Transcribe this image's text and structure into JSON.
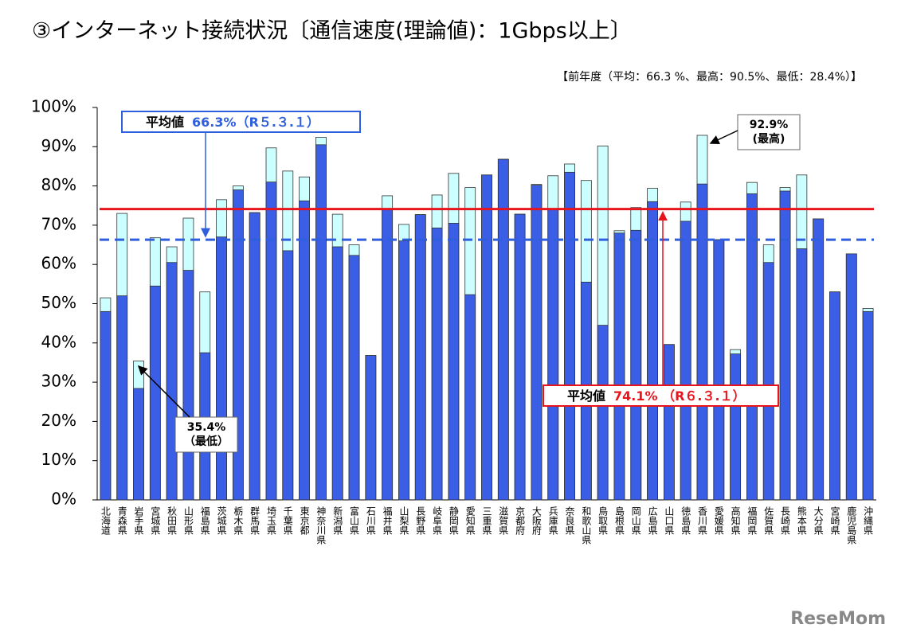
{
  "chart_data": {
    "type": "bar",
    "title": "③インターネット接続状況〔通信速度(理論値)：1Gbps以上〕",
    "subtitle": "【前年度（平均：66.3 %、最高：90.5%、最低：28.4%）】",
    "categories": [
      "北海道",
      "青森県",
      "岩手県",
      "宮城県",
      "秋田県",
      "山形県",
      "福島県",
      "茨城県",
      "栃木県",
      "群馬県",
      "埼玉県",
      "千葉県",
      "東京都",
      "神奈川県",
      "新潟県",
      "富山県",
      "石川県",
      "福井県",
      "山梨県",
      "長野県",
      "岐阜県",
      "静岡県",
      "愛知県",
      "三重県",
      "滋賀県",
      "京都府",
      "大阪府",
      "兵庫県",
      "奈良県",
      "和歌山県",
      "鳥取県",
      "島根県",
      "岡山県",
      "広島県",
      "山口県",
      "徳島県",
      "香川県",
      "愛媛県",
      "高知県",
      "福岡県",
      "佐賀県",
      "長崎県",
      "熊本県",
      "大分県",
      "宮崎県",
      "鹿児島県",
      "沖縄県"
    ],
    "series": [
      {
        "color": "#ccffff",
        "values": [
          51.5,
          73.0,
          35.4,
          66.8,
          64.5,
          71.8,
          53.0,
          76.5,
          80.0,
          73.2,
          89.7,
          83.8,
          82.3,
          92.4,
          72.8,
          65.0,
          36.8,
          77.5,
          70.2,
          72.7,
          77.7,
          83.2,
          79.6,
          82.8,
          86.8,
          72.8,
          80.4,
          82.6,
          85.6,
          81.4,
          90.2,
          68.6,
          74.5,
          79.4,
          39.6,
          75.9,
          92.9,
          66.3,
          38.3,
          80.9,
          65.0,
          79.6,
          82.8,
          71.6,
          53.0,
          62.7,
          48.8
        ]
      },
      {
        "color": "#3b5ee6",
        "values": [
          48.0,
          52.0,
          28.4,
          54.5,
          60.5,
          58.5,
          37.5,
          67.0,
          79.0,
          73.2,
          81.0,
          63.5,
          76.2,
          90.5,
          64.5,
          62.3,
          36.8,
          74.0,
          66.0,
          72.7,
          69.3,
          70.5,
          52.3,
          82.8,
          86.8,
          72.8,
          80.2,
          74.0,
          83.5,
          55.5,
          44.5,
          68.0,
          68.7,
          76.0,
          39.6,
          71.0,
          80.5,
          66.3,
          37.2,
          78.0,
          60.5,
          78.7,
          64.0,
          71.6,
          53.0,
          62.7,
          48.0
        ]
      }
    ],
    "ylim": [
      0,
      100
    ],
    "yticks": [
      {
        "value": 0,
        "label": "0%"
      },
      {
        "value": 10,
        "label": "10%"
      },
      {
        "value": 20,
        "label": "20%"
      },
      {
        "value": 30,
        "label": "30%"
      },
      {
        "value": 40,
        "label": "40%"
      },
      {
        "value": 50,
        "label": "50%"
      },
      {
        "value": 60,
        "label": "60%"
      },
      {
        "value": 70,
        "label": "70%"
      },
      {
        "value": 80,
        "label": "80%"
      },
      {
        "value": 90,
        "label": "90%"
      },
      {
        "value": 100,
        "label": "100%"
      }
    ],
    "reference_lines": [
      {
        "value": 66.3,
        "label": "平均値",
        "value_label": "66.3%",
        "note": "（R５.３.１）",
        "color": "#2f5fdc",
        "dashed": true
      },
      {
        "value": 74.1,
        "label": "平均値",
        "value_label": "74.1%",
        "note": " （R６.３.１）",
        "color": "#e8141c",
        "dashed": false
      }
    ],
    "annotations": [
      {
        "text": "92.9%",
        "sub": "(最高)"
      },
      {
        "text": "35.4%",
        "sub": "（最低）"
      }
    ],
    "watermark": "ReseMom"
  }
}
